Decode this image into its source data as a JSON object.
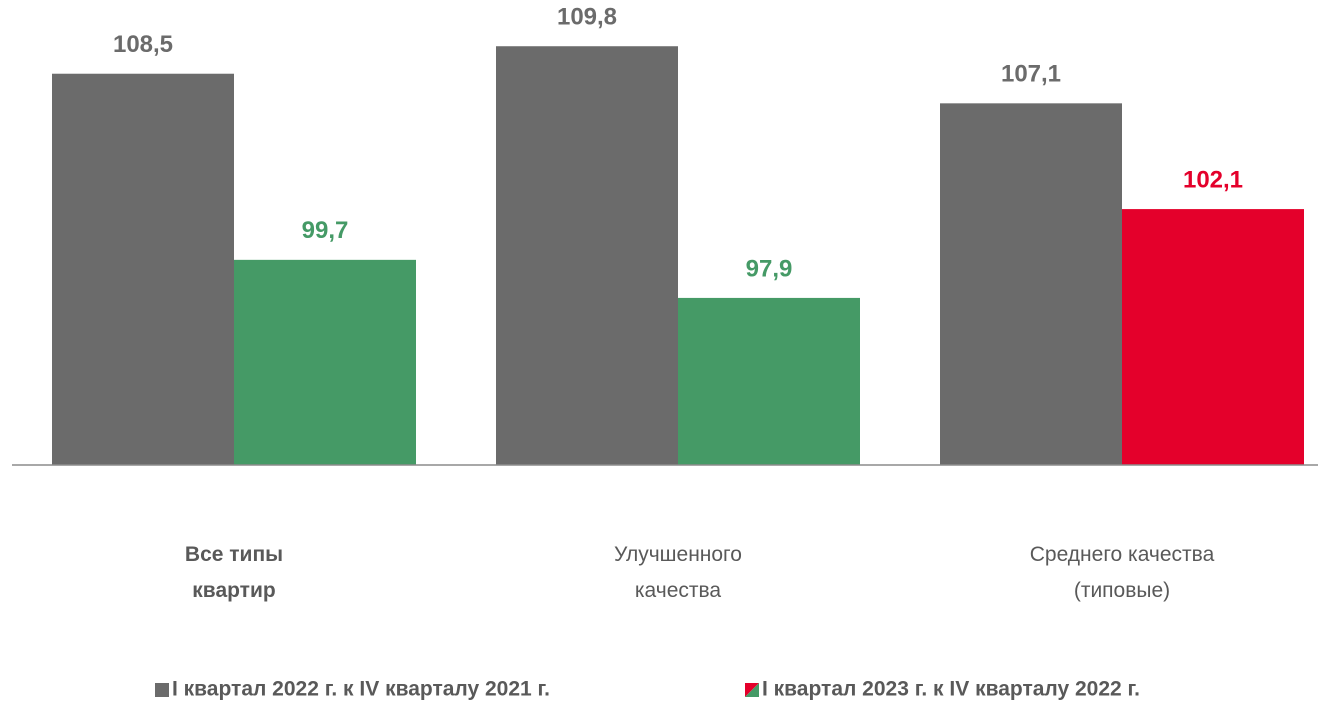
{
  "chart_data": {
    "type": "bar",
    "categories": [
      "Все типы\nквартир",
      "Улучшенного\nкачества",
      "Среднего качества\n(типовые)"
    ],
    "category_bold": [
      true,
      false,
      false
    ],
    "series": [
      {
        "name": "I квартал 2022 г. к IV кварталу 2021 г.",
        "color": "#6b6b6b",
        "point_colors": [
          "#6b6b6b",
          "#6b6b6b",
          "#6b6b6b"
        ],
        "values": [
          108.5,
          109.8,
          107.1
        ],
        "value_labels": [
          "108,5",
          "109,8",
          "107,1"
        ]
      },
      {
        "name": "I квартал 2023 г. к IV кварталу 2022 г.",
        "color": "#459a66",
        "point_colors": [
          "#459a66",
          "#459a66",
          "#e4002b"
        ],
        "values": [
          99.7,
          97.9,
          102.1
        ],
        "value_labels": [
          "99,7",
          "97,9",
          "102,1"
        ]
      }
    ],
    "ylim": [
      90,
      110
    ],
    "legend": "bottom"
  }
}
